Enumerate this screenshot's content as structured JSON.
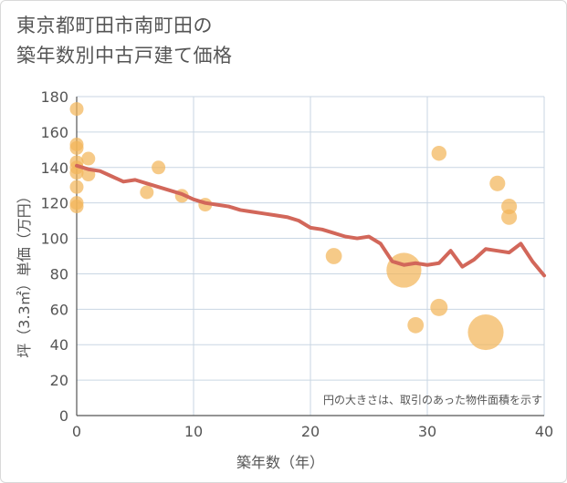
{
  "chart_data": {
    "type": "scatter+line",
    "title_lines": [
      "東京都町田市南町田の",
      "築年数別中古戸建て価格"
    ],
    "xlabel": "築年数（年）",
    "ylabel": "坪（3.3㎡）単価（万円）",
    "xlim": [
      0,
      40
    ],
    "ylim": [
      0,
      180
    ],
    "x_ticks": [
      0,
      10,
      20,
      30,
      40
    ],
    "y_ticks": [
      0,
      20,
      40,
      60,
      80,
      100,
      120,
      140,
      160,
      180
    ],
    "note": "円の大きさは、取引のあった物件面積を示す",
    "colors": {
      "scatter": "#f2b55a",
      "line": "#d2675a",
      "grid": "#c9d6e3",
      "axis": "#555555"
    },
    "scatter": [
      {
        "x": 0,
        "y": 173,
        "size": 1
      },
      {
        "x": 0,
        "y": 153,
        "size": 1
      },
      {
        "x": 0,
        "y": 151,
        "size": 1
      },
      {
        "x": 0,
        "y": 143,
        "size": 1
      },
      {
        "x": 0,
        "y": 140,
        "size": 1
      },
      {
        "x": 0,
        "y": 137,
        "size": 1
      },
      {
        "x": 0,
        "y": 129,
        "size": 1
      },
      {
        "x": 0,
        "y": 120,
        "size": 1
      },
      {
        "x": 0,
        "y": 118,
        "size": 1
      },
      {
        "x": 1,
        "y": 145,
        "size": 1
      },
      {
        "x": 1,
        "y": 136,
        "size": 1
      },
      {
        "x": 6,
        "y": 126,
        "size": 1
      },
      {
        "x": 7,
        "y": 140,
        "size": 1
      },
      {
        "x": 9,
        "y": 124,
        "size": 1
      },
      {
        "x": 11,
        "y": 119,
        "size": 1
      },
      {
        "x": 22,
        "y": 90,
        "size": 1.4
      },
      {
        "x": 28,
        "y": 82,
        "size": 6.5
      },
      {
        "x": 29,
        "y": 51,
        "size": 1.4
      },
      {
        "x": 31,
        "y": 148,
        "size": 1.2
      },
      {
        "x": 31,
        "y": 61,
        "size": 1.6
      },
      {
        "x": 35,
        "y": 47,
        "size": 6.8
      },
      {
        "x": 36,
        "y": 131,
        "size": 1.3
      },
      {
        "x": 37,
        "y": 118,
        "size": 1.3
      },
      {
        "x": 37,
        "y": 112,
        "size": 1.3
      }
    ],
    "line": {
      "x": [
        0,
        1,
        2,
        3,
        4,
        5,
        6,
        7,
        8,
        9,
        10,
        11,
        12,
        13,
        14,
        15,
        16,
        17,
        18,
        19,
        20,
        21,
        22,
        23,
        24,
        25,
        26,
        27,
        28,
        29,
        30,
        31,
        32,
        33,
        34,
        35,
        36,
        37,
        38,
        39,
        40
      ],
      "y": [
        141,
        139,
        138,
        135,
        132,
        133,
        131,
        129,
        127,
        125,
        122,
        120,
        119,
        118,
        116,
        115,
        114,
        113,
        112,
        110,
        106,
        105,
        103,
        101,
        100,
        101,
        97,
        87,
        85,
        86,
        85,
        86,
        93,
        84,
        88,
        94,
        93,
        92,
        97,
        87,
        79
      ]
    }
  }
}
